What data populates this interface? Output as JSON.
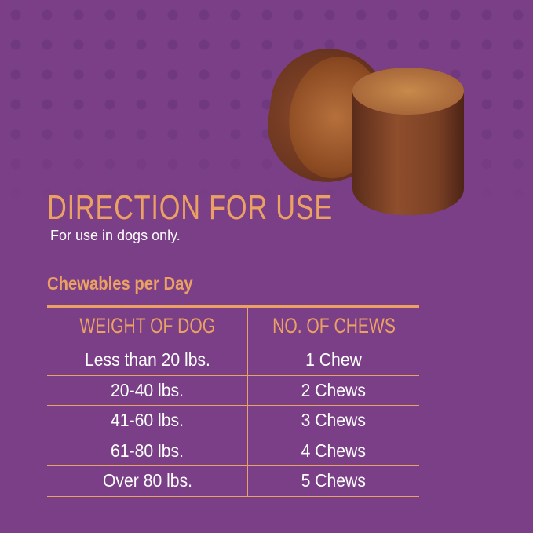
{
  "colors": {
    "background": "#7a3f87",
    "accent": "#eba064",
    "text": "#ffffff"
  },
  "title": "DIRECTION FOR USE",
  "subtitle": "For use in dogs only.",
  "section_heading": "Chewables per Day",
  "table": {
    "headers": [
      "WEIGHT OF DOG",
      "NO. OF CHEWS"
    ],
    "rows": [
      [
        "Less than 20 lbs.",
        "1 Chew"
      ],
      [
        "20-40 lbs.",
        "2 Chews"
      ],
      [
        "41-60 lbs.",
        "3 Chews"
      ],
      [
        "61-80 lbs.",
        "4 Chews"
      ],
      [
        "Over 80 lbs.",
        "5 Chews"
      ]
    ]
  }
}
